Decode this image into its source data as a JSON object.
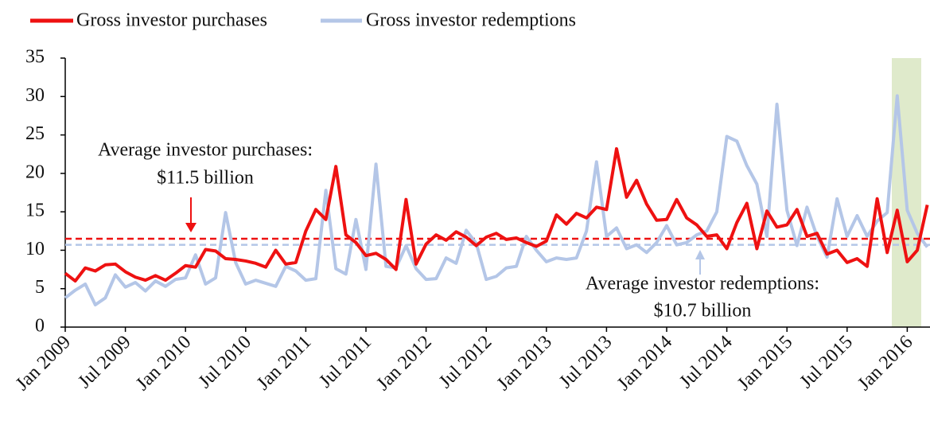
{
  "chart_data": {
    "type": "line",
    "categories": [
      "Jan 2009",
      null,
      null,
      null,
      null,
      null,
      "Jul 2009",
      null,
      null,
      null,
      null,
      null,
      "Jan 2010",
      null,
      null,
      null,
      null,
      null,
      "Jul 2010",
      null,
      null,
      null,
      null,
      null,
      "Jan 2011",
      null,
      null,
      null,
      null,
      null,
      "Jul 2011",
      null,
      null,
      null,
      null,
      null,
      "Jan 2012",
      null,
      null,
      null,
      null,
      null,
      "Jul 2012",
      null,
      null,
      null,
      null,
      null,
      "Jan 2013",
      null,
      null,
      null,
      null,
      null,
      "Jul 2013",
      null,
      null,
      null,
      null,
      null,
      "Jan 2014",
      null,
      null,
      null,
      null,
      null,
      "Jul 2014",
      null,
      null,
      null,
      null,
      null,
      "Jan 2015",
      null,
      null,
      null,
      null,
      null,
      "Jul 2015",
      null,
      null,
      null,
      null,
      null,
      "Jan 2016",
      null,
      null
    ],
    "series": [
      {
        "name": "Gross investor purchases",
        "color": "#ee1111",
        "values": [
          7,
          6,
          7.7,
          7.3,
          8.1,
          8.2,
          7.2,
          6.5,
          6.1,
          6.7,
          6.1,
          7,
          8,
          7.8,
          10.1,
          9.9,
          8.9,
          8.8,
          8.6,
          8.3,
          7.8,
          10,
          8.2,
          8.4,
          12.5,
          15.3,
          14,
          20.9,
          12,
          11,
          9.3,
          9.6,
          8.8,
          7.5,
          16.6,
          8.2,
          10.8,
          12,
          11.3,
          12.4,
          11.7,
          10.6,
          11.7,
          12.2,
          11.4,
          11.6,
          11,
          10.5,
          11.2,
          14.6,
          13.4,
          14.8,
          14.2,
          15.6,
          15.3,
          23.2,
          16.9,
          19.1,
          16,
          13.9,
          14,
          16.6,
          14.2,
          13.3,
          11.8,
          12,
          10.2,
          13.6,
          16.1,
          10.2,
          15.1,
          13,
          13.3,
          15.3,
          11.8,
          12.2,
          9.5,
          10,
          8.4,
          8.9,
          7.9,
          16.7,
          9.7,
          15.2,
          8.5,
          10,
          15.9
        ]
      },
      {
        "name": "Gross investor redemptions",
        "color": "#b4c6e7",
        "values": [
          3.8,
          4.8,
          5.6,
          2.9,
          3.8,
          6.8,
          5.2,
          5.8,
          4.7,
          6,
          5.3,
          6.2,
          6.4,
          9.4,
          5.6,
          6.4,
          14.9,
          8.4,
          5.6,
          6.1,
          5.7,
          5.3,
          7.9,
          7.3,
          6.1,
          6.3,
          17.8,
          7.6,
          6.9,
          14,
          7.5,
          21.2,
          7.9,
          7.7,
          10.6,
          7.6,
          6.2,
          6.3,
          9,
          8.3,
          12.6,
          10.9,
          6.2,
          6.6,
          7.7,
          7.9,
          11.8,
          10,
          8.5,
          9,
          8.8,
          9,
          12.5,
          21.5,
          11.8,
          12.9,
          10.2,
          10.7,
          9.7,
          11,
          13.2,
          10.7,
          11,
          12,
          12.5,
          15,
          24.8,
          24.2,
          21,
          18.6,
          11.8,
          29,
          15.2,
          10.6,
          15.6,
          11.8,
          9.1,
          16.7,
          11.8,
          14.5,
          11.8,
          13.8,
          14.9,
          30.1,
          15.2,
          12.2,
          10.4
        ]
      }
    ],
    "reference_lines": [
      {
        "value": 11.5,
        "color": "#ee1111",
        "label": [
          "Average investor purchases:",
          "$11.5 billion"
        ]
      },
      {
        "value": 10.7,
        "color": "#b4c6e7",
        "label": [
          "Average investor redemptions:",
          "$10.7 billion"
        ]
      }
    ],
    "ylim": [
      0,
      35
    ],
    "yticks": [
      0,
      5,
      10,
      15,
      20,
      25,
      30,
      35
    ]
  }
}
